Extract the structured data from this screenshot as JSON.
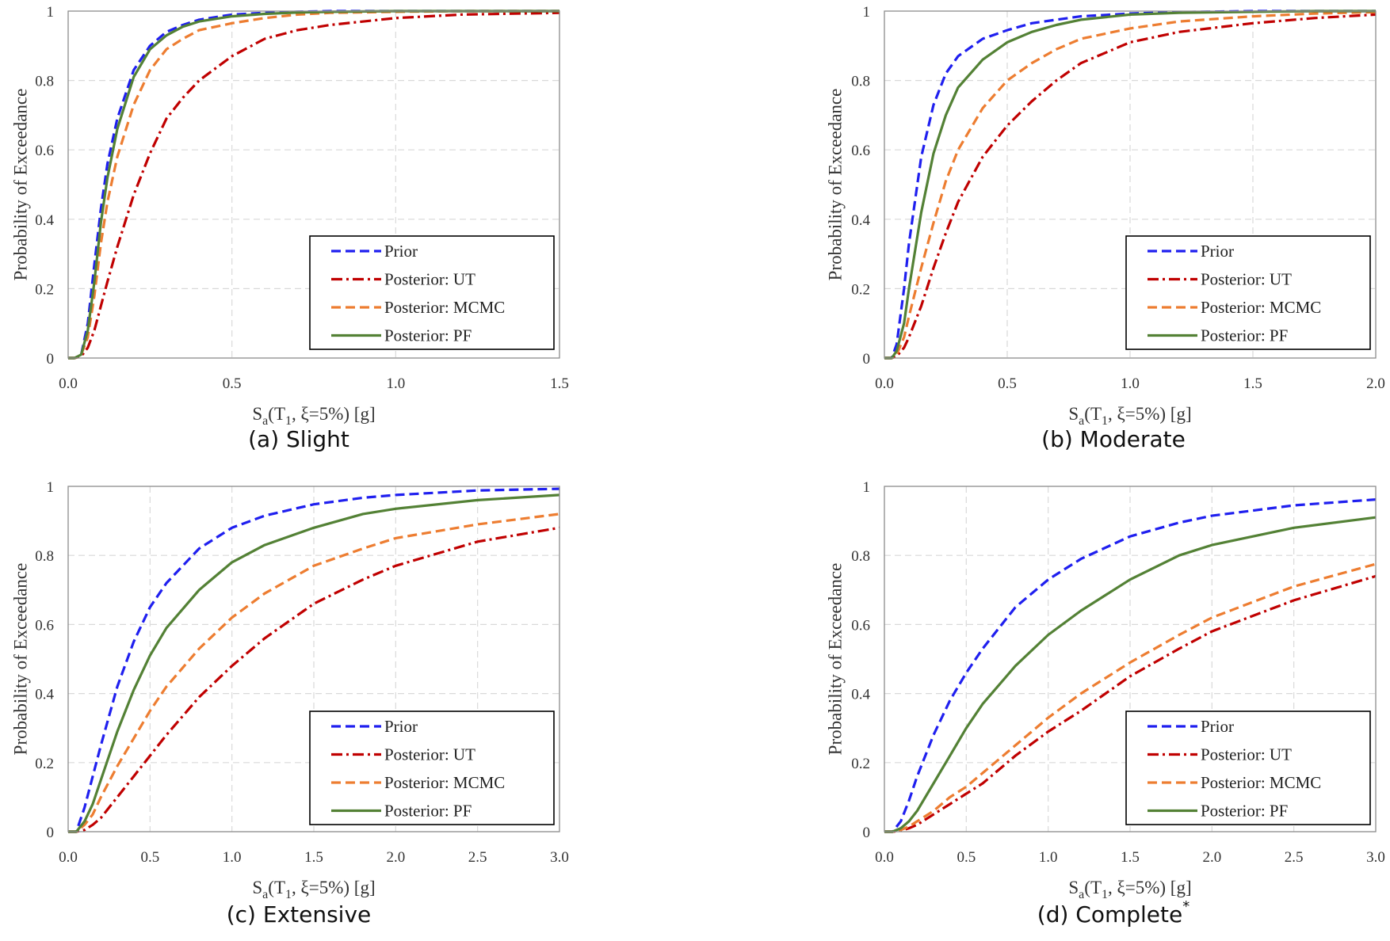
{
  "chart_data": [
    {
      "type": "line",
      "caption": "(a) Slight",
      "caption_sup": "",
      "xlabel": {
        "main": "S",
        "sub1": "a",
        "mid": "(T",
        "sub2": "1",
        "end": ", ξ=5%) [g]"
      },
      "ylabel": "Probability of Exceedance",
      "xlim": [
        0,
        1.5
      ],
      "ylim": [
        0,
        1
      ],
      "xticks": [
        "0.0",
        "0.5",
        "1.0",
        "1.5"
      ],
      "yticks": [
        "0",
        "0.2",
        "0.4",
        "0.6",
        "0.8",
        "1"
      ],
      "grid": true,
      "legend_position": "lower-right",
      "x": [
        0,
        0.02,
        0.04,
        0.06,
        0.08,
        0.1,
        0.12,
        0.15,
        0.2,
        0.25,
        0.3,
        0.35,
        0.4,
        0.5,
        0.6,
        0.7,
        0.8,
        1.0,
        1.2,
        1.5
      ],
      "series": [
        {
          "name": "Prior",
          "color": "#1f1fef",
          "style": "dashed",
          "values": [
            0,
            0,
            0.01,
            0.1,
            0.27,
            0.43,
            0.56,
            0.69,
            0.83,
            0.9,
            0.94,
            0.96,
            0.975,
            0.99,
            0.995,
            0.998,
            1.0,
            1.0,
            1.0,
            1.0
          ]
        },
        {
          "name": "Posterior: UT",
          "color": "#c00000",
          "style": "dashdot",
          "values": [
            0,
            0,
            0.005,
            0.03,
            0.08,
            0.15,
            0.22,
            0.32,
            0.47,
            0.59,
            0.69,
            0.75,
            0.8,
            0.87,
            0.92,
            0.945,
            0.96,
            0.98,
            0.99,
            0.995
          ]
        },
        {
          "name": "Posterior: MCMC",
          "color": "#ed7d31",
          "style": "dashed",
          "values": [
            0,
            0,
            0.01,
            0.06,
            0.18,
            0.33,
            0.45,
            0.58,
            0.73,
            0.83,
            0.89,
            0.92,
            0.945,
            0.965,
            0.98,
            0.99,
            0.995,
            0.998,
            1.0,
            1.0
          ]
        },
        {
          "name": "Posterior: PF",
          "color": "#538135",
          "style": "solid",
          "values": [
            0,
            0,
            0.01,
            0.08,
            0.22,
            0.39,
            0.52,
            0.66,
            0.81,
            0.89,
            0.93,
            0.955,
            0.97,
            0.985,
            0.992,
            0.996,
            0.998,
            1.0,
            1.0,
            1.0
          ]
        }
      ]
    },
    {
      "type": "line",
      "caption": "(b) Moderate",
      "caption_sup": "",
      "xlabel": {
        "main": "S",
        "sub1": "a",
        "mid": "(T",
        "sub2": "1",
        "end": ", ξ=5%) [g]"
      },
      "ylabel": "Probability of Exceedance",
      "xlim": [
        0,
        2.0
      ],
      "ylim": [
        0,
        1
      ],
      "xticks": [
        "0.0",
        "0.5",
        "1.0",
        "1.5",
        "2.0"
      ],
      "yticks": [
        "0",
        "0.2",
        "0.4",
        "0.6",
        "0.8",
        "1"
      ],
      "grid": true,
      "legend_position": "lower-right",
      "x": [
        0,
        0.03,
        0.05,
        0.08,
        0.1,
        0.15,
        0.2,
        0.25,
        0.3,
        0.4,
        0.5,
        0.6,
        0.7,
        0.8,
        1.0,
        1.2,
        1.5,
        1.75,
        2.0
      ],
      "series": [
        {
          "name": "Prior",
          "color": "#1f1fef",
          "style": "dashed",
          "values": [
            0,
            0,
            0.04,
            0.2,
            0.33,
            0.58,
            0.73,
            0.82,
            0.87,
            0.92,
            0.945,
            0.965,
            0.975,
            0.985,
            0.993,
            0.997,
            1.0,
            1.0,
            1.0
          ]
        },
        {
          "name": "Posterior: UT",
          "color": "#c00000",
          "style": "dashdot",
          "values": [
            0,
            0,
            0.005,
            0.03,
            0.06,
            0.15,
            0.26,
            0.36,
            0.45,
            0.58,
            0.67,
            0.74,
            0.8,
            0.85,
            0.91,
            0.94,
            0.965,
            0.98,
            0.99
          ]
        },
        {
          "name": "Posterior: MCMC",
          "color": "#ed7d31",
          "style": "dashed",
          "values": [
            0,
            0,
            0.01,
            0.06,
            0.12,
            0.26,
            0.39,
            0.51,
            0.6,
            0.72,
            0.8,
            0.85,
            0.89,
            0.92,
            0.95,
            0.97,
            0.985,
            0.993,
            0.997
          ]
        },
        {
          "name": "Posterior: PF",
          "color": "#538135",
          "style": "solid",
          "values": [
            0,
            0,
            0.02,
            0.1,
            0.2,
            0.42,
            0.59,
            0.7,
            0.78,
            0.86,
            0.91,
            0.94,
            0.96,
            0.975,
            0.99,
            0.995,
            0.998,
            1.0,
            1.0
          ]
        }
      ]
    },
    {
      "type": "line",
      "caption": "(c) Extensive",
      "caption_sup": "",
      "xlabel": {
        "main": "S",
        "sub1": "a",
        "mid": "(T",
        "sub2": "1",
        "end": ", ξ=5%) [g]"
      },
      "ylabel": "Probability of Exceedance",
      "xlim": [
        0,
        3.0
      ],
      "ylim": [
        0,
        1
      ],
      "xticks": [
        "0.0",
        "0.5",
        "1.0",
        "1.5",
        "2.0",
        "2.5",
        "3.0"
      ],
      "yticks": [
        "0",
        "0.2",
        "0.4",
        "0.6",
        "0.8",
        "1"
      ],
      "grid": true,
      "legend_position": "lower-right",
      "x": [
        0,
        0.05,
        0.1,
        0.15,
        0.2,
        0.3,
        0.4,
        0.5,
        0.6,
        0.8,
        1.0,
        1.2,
        1.5,
        1.8,
        2.0,
        2.5,
        3.0
      ],
      "series": [
        {
          "name": "Prior",
          "color": "#1f1fef",
          "style": "dashed",
          "values": [
            0,
            0,
            0.07,
            0.16,
            0.25,
            0.42,
            0.55,
            0.65,
            0.72,
            0.82,
            0.88,
            0.915,
            0.948,
            0.967,
            0.975,
            0.988,
            0.993
          ]
        },
        {
          "name": "Posterior: UT",
          "color": "#c00000",
          "style": "dashdot",
          "values": [
            0,
            0,
            0.005,
            0.02,
            0.04,
            0.1,
            0.16,
            0.22,
            0.28,
            0.39,
            0.48,
            0.56,
            0.66,
            0.73,
            0.77,
            0.84,
            0.88
          ]
        },
        {
          "name": "Posterior: MCMC",
          "color": "#ed7d31",
          "style": "dashed",
          "values": [
            0,
            0,
            0.02,
            0.05,
            0.1,
            0.19,
            0.27,
            0.35,
            0.42,
            0.53,
            0.62,
            0.69,
            0.77,
            0.82,
            0.85,
            0.89,
            0.92
          ]
        },
        {
          "name": "Posterior: PF",
          "color": "#538135",
          "style": "solid",
          "values": [
            0,
            0,
            0.03,
            0.08,
            0.15,
            0.29,
            0.41,
            0.51,
            0.59,
            0.7,
            0.78,
            0.83,
            0.88,
            0.92,
            0.935,
            0.96,
            0.975
          ]
        }
      ]
    },
    {
      "type": "line",
      "caption": "(d) Complete",
      "caption_sup": "*",
      "xlabel": {
        "main": "S",
        "sub1": "a",
        "mid": "(T",
        "sub2": "1",
        "end": ", ξ=5%) [g]"
      },
      "ylabel": "Probability of Exceedance",
      "xlim": [
        0,
        3.0
      ],
      "ylim": [
        0,
        1
      ],
      "xticks": [
        "0.0",
        "0.5",
        "1.0",
        "1.5",
        "2.0",
        "2.5",
        "3.0"
      ],
      "yticks": [
        "0",
        "0.2",
        "0.4",
        "0.6",
        "0.8",
        "1"
      ],
      "grid": true,
      "legend_position": "lower-right",
      "x": [
        0,
        0.05,
        0.1,
        0.15,
        0.2,
        0.3,
        0.4,
        0.5,
        0.6,
        0.8,
        1.0,
        1.2,
        1.5,
        1.8,
        2.0,
        2.5,
        3.0
      ],
      "series": [
        {
          "name": "Prior",
          "color": "#1f1fef",
          "style": "dashed",
          "values": [
            0,
            0,
            0.03,
            0.09,
            0.16,
            0.28,
            0.38,
            0.46,
            0.53,
            0.65,
            0.73,
            0.79,
            0.855,
            0.895,
            0.915,
            0.945,
            0.962
          ]
        },
        {
          "name": "Posterior: UT",
          "color": "#c00000",
          "style": "dashdot",
          "values": [
            0,
            0,
            0.003,
            0.01,
            0.02,
            0.05,
            0.08,
            0.11,
            0.14,
            0.22,
            0.29,
            0.35,
            0.45,
            0.53,
            0.58,
            0.67,
            0.74
          ]
        },
        {
          "name": "Posterior: MCMC",
          "color": "#ed7d31",
          "style": "dashed",
          "values": [
            0,
            0,
            0.005,
            0.015,
            0.03,
            0.06,
            0.1,
            0.13,
            0.17,
            0.25,
            0.33,
            0.4,
            0.49,
            0.57,
            0.62,
            0.71,
            0.775
          ]
        },
        {
          "name": "Posterior: PF",
          "color": "#538135",
          "style": "solid",
          "values": [
            0,
            0,
            0.01,
            0.03,
            0.06,
            0.14,
            0.22,
            0.3,
            0.37,
            0.48,
            0.57,
            0.64,
            0.73,
            0.8,
            0.83,
            0.88,
            0.91
          ]
        }
      ]
    }
  ]
}
